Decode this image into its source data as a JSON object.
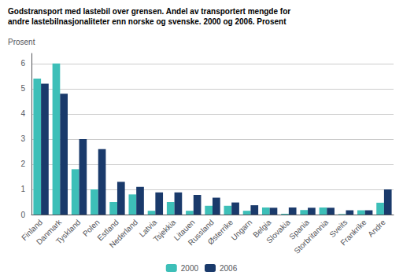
{
  "chart_data": {
    "type": "bar",
    "title": "Godstransport med lastebil over grensen. Andel av transportert mengde for",
    "subtitle": "andre lastebilnasjonaliteter enn norske og svenske. 2000 og 2006. Prosent",
    "ylabel": "Prosent",
    "categories": [
      "Finland",
      "Danmark",
      "Tyskland",
      "Polen",
      "Estland",
      "Nederland",
      "Latvia",
      "Tsjekkia",
      "Litauen",
      "Russland",
      "Østerrike",
      "Ungarn",
      "Belgia",
      "Slovakia",
      "Spania",
      "Storbritannia",
      "Sveits",
      "Frankrike",
      "Andre"
    ],
    "series": [
      {
        "name": "2000",
        "color": "#3dbfb8",
        "values": [
          5.4,
          6.0,
          1.8,
          1.0,
          0.5,
          0.8,
          0.15,
          0.5,
          0.15,
          0.35,
          0.35,
          0.15,
          0.28,
          0.03,
          0.18,
          0.28,
          0.02,
          0.17,
          0.47
        ]
      },
      {
        "name": "2006",
        "color": "#1a3a6b",
        "values": [
          5.2,
          4.8,
          3.0,
          2.6,
          1.3,
          1.1,
          0.88,
          0.88,
          0.78,
          0.67,
          0.48,
          0.37,
          0.27,
          0.28,
          0.27,
          0.27,
          0.17,
          0.17,
          1.0
        ]
      }
    ],
    "ylim": [
      0,
      6.4
    ],
    "yticks": [
      0,
      1,
      2,
      3,
      4,
      5,
      6
    ],
    "grid": true,
    "legend": "bottom"
  }
}
